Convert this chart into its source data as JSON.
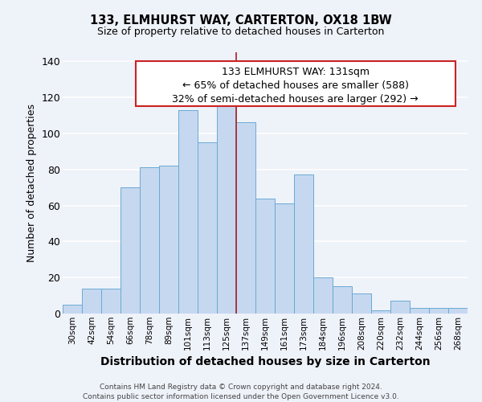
{
  "title": "133, ELMHURST WAY, CARTERTON, OX18 1BW",
  "subtitle": "Size of property relative to detached houses in Carterton",
  "xlabel": "Distribution of detached houses by size in Carterton",
  "ylabel": "Number of detached properties",
  "annotation_title": "133 ELMHURST WAY: 131sqm",
  "annotation_line1": "← 65% of detached houses are smaller (588)",
  "annotation_line2": "32% of semi-detached houses are larger (292) →",
  "bar_labels": [
    "30sqm",
    "42sqm",
    "54sqm",
    "66sqm",
    "78sqm",
    "89sqm",
    "101sqm",
    "113sqm",
    "125sqm",
    "137sqm",
    "149sqm",
    "161sqm",
    "173sqm",
    "184sqm",
    "196sqm",
    "208sqm",
    "220sqm",
    "232sqm",
    "244sqm",
    "256sqm",
    "268sqm"
  ],
  "bar_values": [
    5,
    14,
    14,
    70,
    81,
    82,
    113,
    95,
    116,
    106,
    64,
    61,
    77,
    20,
    15,
    11,
    2,
    7,
    3,
    3,
    3
  ],
  "bar_color": "#c5d8f0",
  "bar_edgecolor": "#6aaad4",
  "redline_index": 9,
  "redline_color": "#aa2222",
  "annotation_box_edgecolor": "#cc2222",
  "annotation_box_facecolor": "#ffffff",
  "ylim": [
    0,
    145
  ],
  "yticks": [
    0,
    20,
    40,
    60,
    80,
    100,
    120,
    140
  ],
  "footer1": "Contains HM Land Registry data © Crown copyright and database right 2024.",
  "footer2": "Contains public sector information licensed under the Open Government Licence v3.0.",
  "background_color": "#eef2f9",
  "grid_color": "#ffffff"
}
